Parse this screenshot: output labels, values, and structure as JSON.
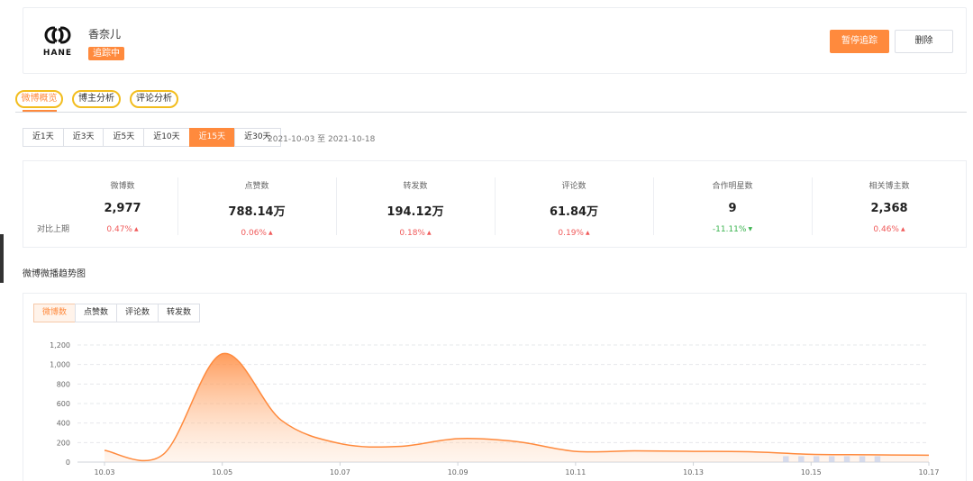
{
  "brand": {
    "logo_text": "HANE",
    "name": "香奈儿",
    "status_badge": "追踪中",
    "pause_label": "暂停追踪",
    "delete_label": "删除"
  },
  "tabs": [
    {
      "label": "微博概览",
      "active": true
    },
    {
      "label": "博主分析",
      "active": false
    },
    {
      "label": "评论分析",
      "active": false
    }
  ],
  "time_ranges": [
    {
      "label": "近1天",
      "active": false
    },
    {
      "label": "近3天",
      "active": false
    },
    {
      "label": "近5天",
      "active": false
    },
    {
      "label": "近10天",
      "active": false
    },
    {
      "label": "近15天",
      "active": true
    },
    {
      "label": "近30天",
      "active": false
    }
  ],
  "date_range": "2021-10-03 至 2021-10-18",
  "stats": {
    "compare_label": "对比上期",
    "items": [
      {
        "label": "微博数",
        "value": "2,977",
        "change": "0.47%",
        "trend": "up"
      },
      {
        "label": "点赞数",
        "value": "788.14万",
        "change": "0.06%",
        "trend": "up"
      },
      {
        "label": "转发数",
        "value": "194.12万",
        "change": "0.18%",
        "trend": "up"
      },
      {
        "label": "评论数",
        "value": "61.84万",
        "change": "0.19%",
        "trend": "up"
      },
      {
        "label": "合作明星数",
        "value": "9",
        "change": "-11.11%",
        "trend": "down"
      },
      {
        "label": "相关博主数",
        "value": "2,368",
        "change": "0.46%",
        "trend": "up"
      }
    ]
  },
  "trend_section": {
    "title": "微博微播趋势图",
    "metric_tabs": [
      {
        "label": "微博数",
        "active": true
      },
      {
        "label": "点赞数",
        "active": false
      },
      {
        "label": "评论数",
        "active": false
      },
      {
        "label": "转发数",
        "active": false
      }
    ]
  },
  "colors": {
    "accent": "#ff8a3d",
    "tab_highlight": "#f2bd1e",
    "up": "#f05a5a",
    "down": "#3cb450"
  },
  "chart_data": {
    "type": "area",
    "x": [
      "10.03",
      "10.04",
      "10.05",
      "10.06",
      "10.07",
      "10.08",
      "10.09",
      "10.10",
      "10.11",
      "10.12",
      "10.13",
      "10.14",
      "10.15",
      "10.16",
      "10.17"
    ],
    "series": [
      {
        "values": [
          120,
          80,
          1110,
          430,
          190,
          160,
          240,
          210,
          110,
          115,
          110,
          105,
          80,
          75,
          70
        ]
      }
    ],
    "x_tick_labels": [
      "10.03",
      "10.05",
      "10.07",
      "10.09",
      "10.11",
      "10.13",
      "10.15",
      "10.17"
    ],
    "y_ticks": [
      "0",
      "200",
      "400",
      "600",
      "800",
      "1,000",
      "1,200"
    ],
    "ylim": [
      0,
      1200
    ],
    "grid": true,
    "line_color": "#ff8a3d"
  }
}
